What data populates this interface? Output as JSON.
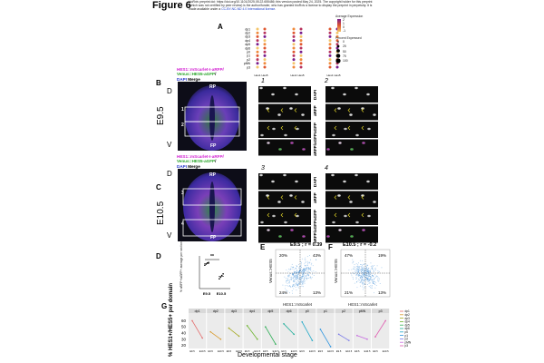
{
  "figure": {
    "title": "Figure 6",
    "preprint_line1": "bioRxiv preprint doi: https://doi.org/10.1101/2025.05.22.655486; this version posted May 24, 2025. The copyright holder for this preprint",
    "preprint_line2": "(which was not certified by peer review) is the author/funder, who has granted bioRxiv a license to display the preprint in perpetuity. It is",
    "preprint_line3_a": "made available under a",
    "preprint_line3_link": "CC-BY-NC-ND 4.0 International license",
    "preprint_line3_b": "."
  },
  "panelA": {
    "label": "A",
    "legend_expr_title": "Average Expression",
    "legend_expr_ticks": [
      "2",
      "1",
      "0",
      "-1"
    ],
    "legend_pct_title": "Percent Expressed",
    "legend_pct_ticks": [
      "0",
      "25",
      "50",
      "75",
      "100"
    ],
    "row_labels": [
      "dp1",
      "dp2",
      "dp3",
      "dp4",
      "dp5",
      "dp6",
      "p0",
      "p1",
      "p2",
      "pMN",
      "p3"
    ],
    "group1_x": [
      "Hes1",
      "Hes5"
    ],
    "group2_x": [
      "Hes1",
      "Hes5"
    ],
    "group3_x": [
      "Hes1",
      "Hes5"
    ],
    "colors": {
      "low": "#f4c56a",
      "mid": "#e0572f",
      "high": "#7a1c8c"
    }
  },
  "panelB": {
    "label": "B",
    "stage": "E9.5",
    "legend_line1": "HES1::mScarlet-I-aRFP/",
    "legend_line2a": "Venus::HES5-aGFP",
    "legend_line2b": "/",
    "legend_line3a": "DAPI",
    "legend_line3b": " Merge",
    "D": "D",
    "V": "V",
    "RP": "RP",
    "FP": "FP",
    "box1": "1",
    "box2": "2",
    "crop1_title": "1",
    "crop2_title": "2",
    "row_labels": [
      "DAPI",
      "aRFP",
      "aGFP",
      "aRFP/aGFP"
    ]
  },
  "panelC": {
    "label": "C",
    "stage": "E10.5",
    "legend_line1": "HES1::mScarlet-I-aRFP/",
    "legend_line2a": "Venus::HES5-aGFP",
    "legend_line2b": "/",
    "legend_line3a": "DAPI",
    "legend_line3b": " Merge",
    "D": "D",
    "V": "V",
    "RP": "RP",
    "FP": "FP",
    "box3": "3",
    "box4": "4",
    "crop3_title": "3",
    "crop4_title": "4",
    "row_labels": [
      "DAPI",
      "aRFP",
      "aGFP",
      "aRFP/aGFP"
    ]
  },
  "panelD": {
    "label": "D",
    "ylabel": "% aRFP+/aGFP+ average per section",
    "sig": "**",
    "categories": [
      "E9.5",
      "E10.5"
    ]
  },
  "panelE": {
    "label": "E",
    "title": "E9.5 ; r = 0.39",
    "xlabel": "HES1::mScarlet",
    "ylabel": "Venus::HES5",
    "q_tl": "20%",
    "q_tr": "43%",
    "q_bl": "24%",
    "q_br": "13%"
  },
  "panelF": {
    "label": "F",
    "title": "E10.5 ; r = -0.2",
    "xlabel": "HES1::mScarlet",
    "ylabel": "Venus::HES5",
    "q_tl": "47%",
    "q_tr": "19%",
    "q_bl": "21%",
    "q_br": "13%"
  },
  "panelG": {
    "label": "G",
    "ylabel": "% HES1+/HES5+ per domain",
    "xlabel": "Developmental stage",
    "y_ticks": [
      "60",
      "50",
      "40",
      "30",
      "20"
    ],
    "legend_items": [
      "dp1",
      "dp2",
      "dp3",
      "dp4",
      "dp5",
      "dp6",
      "p0",
      "p1",
      "p2",
      "pMN",
      "p3"
    ]
  },
  "chart_data": [
    {
      "type": "scatter",
      "title": "",
      "ylabel": "% aRFP+/aGFP+ average per section",
      "categories": [
        "E9.5",
        "E10.5"
      ],
      "series": [
        {
          "values": [
            43,
            45,
            47,
            48
          ]
        },
        {
          "values": [
            18,
            21,
            24,
            27
          ]
        }
      ],
      "ylim": [
        0,
        60
      ]
    },
    {
      "type": "line",
      "ylabel": "% HES1+/HES5+ per domain",
      "xlabel": "Developmental stage",
      "categories": [
        "E9.5",
        "E10.5"
      ],
      "ylim": [
        15,
        65
      ],
      "facets": [
        "dp1",
        "dp2",
        "dp3",
        "dp4",
        "dp5",
        "dp6",
        "p0",
        "p1",
        "p2",
        "pMN",
        "p3"
      ],
      "series": [
        {
          "name": "dp1",
          "color": "#e46c6c",
          "values": [
            60,
            32
          ]
        },
        {
          "name": "dp2",
          "color": "#d99a2c",
          "values": [
            42,
            30
          ]
        },
        {
          "name": "dp3",
          "color": "#a4a81e",
          "values": [
            48,
            35
          ]
        },
        {
          "name": "dp4",
          "color": "#6cb42c",
          "values": [
            52,
            30
          ]
        },
        {
          "name": "dp5",
          "color": "#2cae54",
          "values": [
            50,
            22
          ]
        },
        {
          "name": "dp6",
          "color": "#1fae9a",
          "values": [
            55,
            38
          ]
        },
        {
          "name": "p0",
          "color": "#1fa8c8",
          "values": [
            58,
            28
          ]
        },
        {
          "name": "p1",
          "color": "#2c94e0",
          "values": [
            46,
            18
          ]
        },
        {
          "name": "p2",
          "color": "#7c7ce8",
          "values": [
            38,
            28
          ]
        },
        {
          "name": "pMN",
          "color": "#c66ae0",
          "values": [
            36,
            30
          ]
        },
        {
          "name": "p3",
          "color": "#e05ab0",
          "values": [
            34,
            60
          ]
        }
      ]
    }
  ]
}
